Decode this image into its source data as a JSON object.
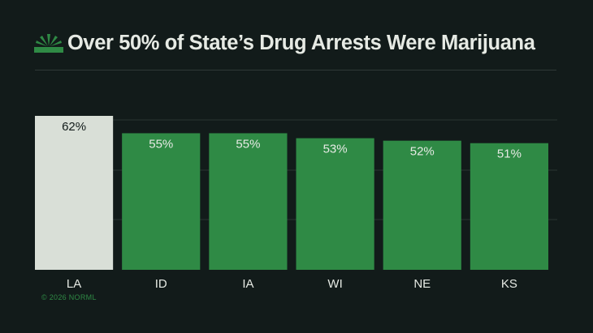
{
  "header": {
    "logo_icon": "norml-leaf-icon",
    "title": "Over 50% of State’s Drug Arrests Were Marijuana"
  },
  "colors": {
    "background": "#121b1a",
    "bar": "#2f8a45",
    "highlight_bar": "#d9dfd7",
    "text_light": "#e6eae4",
    "text_dark": "#121b1a",
    "gridline": "#2a3432"
  },
  "chart_data": {
    "type": "bar",
    "title": "Over 50% of State’s Drug Arrests Were Marijuana",
    "categories": [
      "LA",
      "ID",
      "IA",
      "WI",
      "NE",
      "KS"
    ],
    "values": [
      62,
      55,
      55,
      53,
      52,
      51
    ],
    "value_labels": [
      "62%",
      "55%",
      "55%",
      "53%",
      "52%",
      "51%"
    ],
    "highlight": [
      "LA"
    ],
    "ylim": [
      0,
      62
    ],
    "grid": true,
    "xlabel": "",
    "ylabel": ""
  },
  "footer": {
    "copyright": "© 2026 NORML"
  }
}
